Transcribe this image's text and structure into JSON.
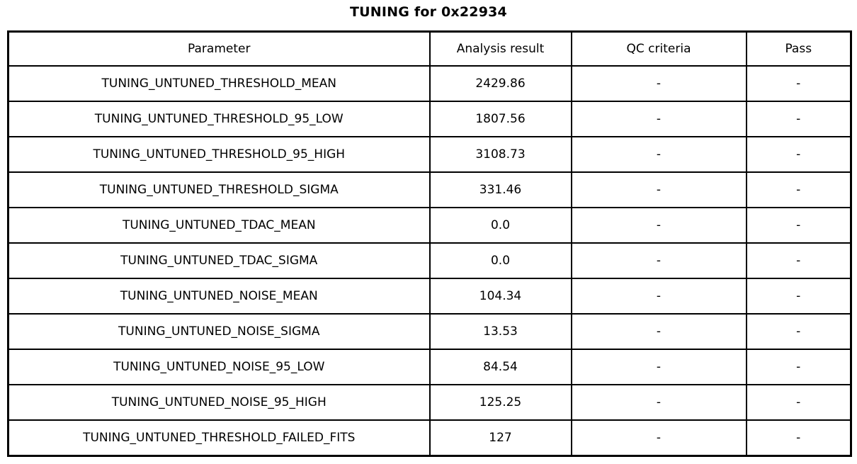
{
  "chart_data": {
    "type": "table",
    "title": "TUNING for 0x22934",
    "columns": [
      "Parameter",
      "Analysis result",
      "QC criteria",
      "Pass"
    ],
    "rows": [
      [
        "TUNING_UNTUNED_THRESHOLD_MEAN",
        "2429.86",
        "-",
        "-"
      ],
      [
        "TUNING_UNTUNED_THRESHOLD_95_LOW",
        "1807.56",
        "-",
        "-"
      ],
      [
        "TUNING_UNTUNED_THRESHOLD_95_HIGH",
        "3108.73",
        "-",
        "-"
      ],
      [
        "TUNING_UNTUNED_THRESHOLD_SIGMA",
        "331.46",
        "-",
        "-"
      ],
      [
        "TUNING_UNTUNED_TDAC_MEAN",
        "0.0",
        "-",
        "-"
      ],
      [
        "TUNING_UNTUNED_TDAC_SIGMA",
        "0.0",
        "-",
        "-"
      ],
      [
        "TUNING_UNTUNED_NOISE_MEAN",
        "104.34",
        "-",
        "-"
      ],
      [
        "TUNING_UNTUNED_NOISE_SIGMA",
        "13.53",
        "-",
        "-"
      ],
      [
        "TUNING_UNTUNED_NOISE_95_LOW",
        "84.54",
        "-",
        "-"
      ],
      [
        "TUNING_UNTUNED_NOISE_95_HIGH",
        "125.25",
        "-",
        "-"
      ],
      [
        "TUNING_UNTUNED_THRESHOLD_FAILED_FITS",
        "127",
        "-",
        "-"
      ]
    ],
    "layout": {
      "grid": true,
      "header_row": true,
      "text_align": "center"
    },
    "colors": {
      "text": "#000000",
      "border": "#000000",
      "background": "#ffffff"
    }
  }
}
